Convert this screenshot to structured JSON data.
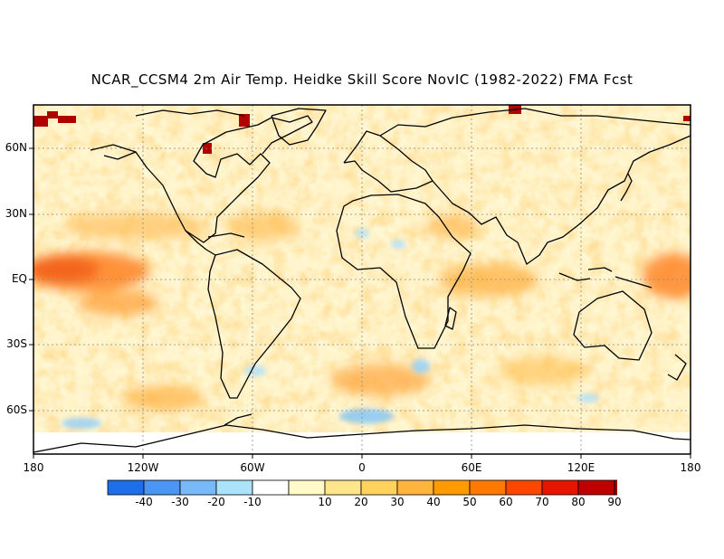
{
  "title": "NCAR_CCSM4 2m Air Temp. Heidke Skill Score NovIC (1982-2022) FMA Fcst",
  "lat_labels": [
    "60N",
    "30N",
    "EQ",
    "30S",
    "60S"
  ],
  "lon_labels": [
    "180",
    "120W",
    "60W",
    "0",
    "60E",
    "120E",
    "180"
  ],
  "colorbar": {
    "colors": [
      "#1e6eeb",
      "#4b96f5",
      "#78b9fa",
      "#aae3fa",
      "#ffffff",
      "#fffac8",
      "#ffe68c",
      "#ffd25a",
      "#ffb43c",
      "#ff9b00",
      "#ff7800",
      "#ff4600",
      "#e61400",
      "#c00000",
      "#a00000"
    ],
    "labels": [
      "-40",
      "-30",
      "-20",
      "-10",
      "10",
      "20",
      "30",
      "40",
      "50",
      "60",
      "70",
      "80",
      "90"
    ]
  }
}
